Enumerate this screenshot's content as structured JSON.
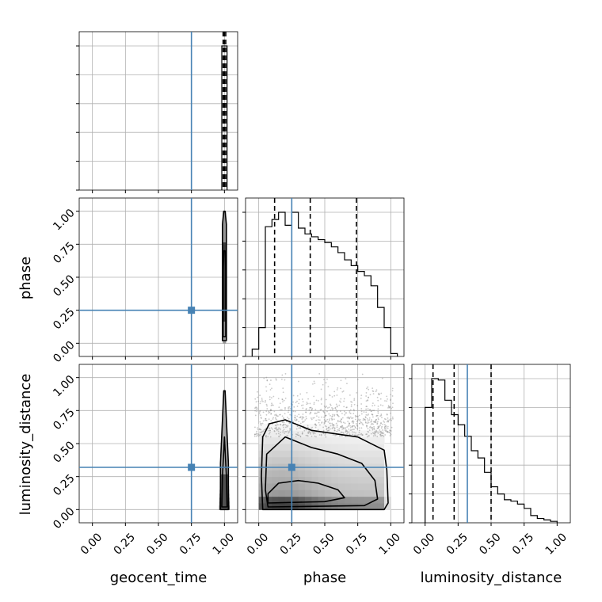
{
  "chart_data": {
    "type": "corner",
    "parameters": [
      "geocent_time",
      "phase",
      "luminosity_distance"
    ],
    "axis_labels": {
      "geocent_time": "geocent_time",
      "phase": "phase",
      "luminosity_distance": "luminosity_distance"
    },
    "ticks": [
      0.0,
      0.25,
      0.5,
      0.75,
      1.0
    ],
    "tick_labels": [
      "0.00",
      "0.25",
      "0.50",
      "0.75",
      "1.00"
    ],
    "range": [
      -0.1,
      1.1
    ],
    "truths": {
      "geocent_time": 0.75,
      "phase": 0.25,
      "luminosity_distance": 0.32
    },
    "truth_color": "#4682b4",
    "grid": true,
    "diagonals": [
      {
        "parameter": "geocent_time",
        "quantiles": [
          0.99,
          1.0,
          1.01
        ],
        "histogram": {
          "edges": [
            0.98,
            0.99,
            1.0,
            1.01,
            1.02
          ],
          "counts": [
            1.0,
            1.0,
            1.0,
            1.0
          ]
        }
      },
      {
        "parameter": "phase",
        "quantiles": [
          0.12,
          0.39,
          0.74
        ],
        "histogram": {
          "edges": [
            -0.05,
            0.0,
            0.05,
            0.1,
            0.15,
            0.2,
            0.25,
            0.3,
            0.35,
            0.4,
            0.45,
            0.5,
            0.55,
            0.6,
            0.65,
            0.7,
            0.75,
            0.8,
            0.85,
            0.9,
            0.95,
            1.0,
            1.05
          ],
          "counts": [
            0.05,
            0.2,
            0.9,
            0.95,
            1.0,
            0.91,
            1.0,
            0.89,
            0.85,
            0.83,
            0.81,
            0.79,
            0.76,
            0.72,
            0.67,
            0.63,
            0.59,
            0.56,
            0.49,
            0.34,
            0.2,
            0.02
          ]
        }
      },
      {
        "parameter": "luminosity_distance",
        "quantiles": [
          0.06,
          0.22,
          0.5
        ],
        "histogram": {
          "edges": [
            0.0,
            0.05,
            0.1,
            0.15,
            0.2,
            0.25,
            0.3,
            0.35,
            0.4,
            0.45,
            0.5,
            0.55,
            0.6,
            0.65,
            0.7,
            0.75,
            0.8,
            0.85,
            0.9,
            0.95,
            1.0
          ],
          "counts": [
            0.8,
            1.0,
            0.99,
            0.85,
            0.75,
            0.68,
            0.6,
            0.5,
            0.45,
            0.35,
            0.25,
            0.2,
            0.16,
            0.15,
            0.13,
            0.1,
            0.05,
            0.03,
            0.02,
            0.01
          ]
        }
      }
    ],
    "joint_panels": [
      {
        "x": "geocent_time",
        "y": "phase",
        "contours": [
          {
            "level": "outer",
            "points": [
              [
                0.985,
                0.02
              ],
              [
                1.015,
                0.02
              ],
              [
                1.015,
                0.9
              ],
              [
                1.005,
                1.0
              ],
              [
                0.995,
                1.0
              ],
              [
                0.985,
                0.9
              ]
            ]
          },
          {
            "level": "inner",
            "points": [
              [
                0.99,
                0.05
              ],
              [
                1.01,
                0.05
              ],
              [
                1.01,
                0.55
              ],
              [
                1.005,
                0.7
              ],
              [
                0.995,
                0.7
              ],
              [
                0.99,
                0.55
              ]
            ]
          }
        ]
      },
      {
        "x": "geocent_time",
        "y": "luminosity_distance",
        "contours": [
          {
            "level": "outer",
            "points": [
              [
                0.97,
                0.0
              ],
              [
                1.03,
                0.0
              ],
              [
                1.03,
                0.35
              ],
              [
                1.005,
                0.9
              ],
              [
                0.995,
                0.9
              ],
              [
                0.97,
                0.35
              ]
            ]
          },
          {
            "level": "inner",
            "points": [
              [
                0.98,
                0.02
              ],
              [
                1.02,
                0.02
              ],
              [
                1.015,
                0.25
              ],
              [
                1.0,
                0.55
              ],
              [
                0.985,
                0.25
              ]
            ]
          }
        ]
      },
      {
        "x": "phase",
        "y": "luminosity_distance",
        "contours": [
          {
            "level": "outer",
            "points": [
              [
                0.03,
                0.0
              ],
              [
                0.95,
                0.0
              ],
              [
                0.98,
                0.05
              ],
              [
                0.97,
                0.3
              ],
              [
                0.95,
                0.45
              ],
              [
                0.75,
                0.55
              ],
              [
                0.4,
                0.6
              ],
              [
                0.2,
                0.68
              ],
              [
                0.08,
                0.65
              ],
              [
                0.03,
                0.55
              ],
              [
                0.02,
                0.25
              ]
            ]
          },
          {
            "level": "middle",
            "points": [
              [
                0.07,
                0.02
              ],
              [
                0.8,
                0.03
              ],
              [
                0.9,
                0.08
              ],
              [
                0.88,
                0.22
              ],
              [
                0.78,
                0.35
              ],
              [
                0.6,
                0.42
              ],
              [
                0.4,
                0.47
              ],
              [
                0.2,
                0.55
              ],
              [
                0.06,
                0.42
              ],
              [
                0.05,
                0.15
              ]
            ]
          },
          {
            "level": "inner",
            "points": [
              [
                0.07,
                0.05
              ],
              [
                0.5,
                0.06
              ],
              [
                0.65,
                0.09
              ],
              [
                0.6,
                0.15
              ],
              [
                0.45,
                0.2
              ],
              [
                0.3,
                0.22
              ],
              [
                0.15,
                0.2
              ],
              [
                0.07,
                0.12
              ]
            ]
          }
        ]
      }
    ]
  }
}
